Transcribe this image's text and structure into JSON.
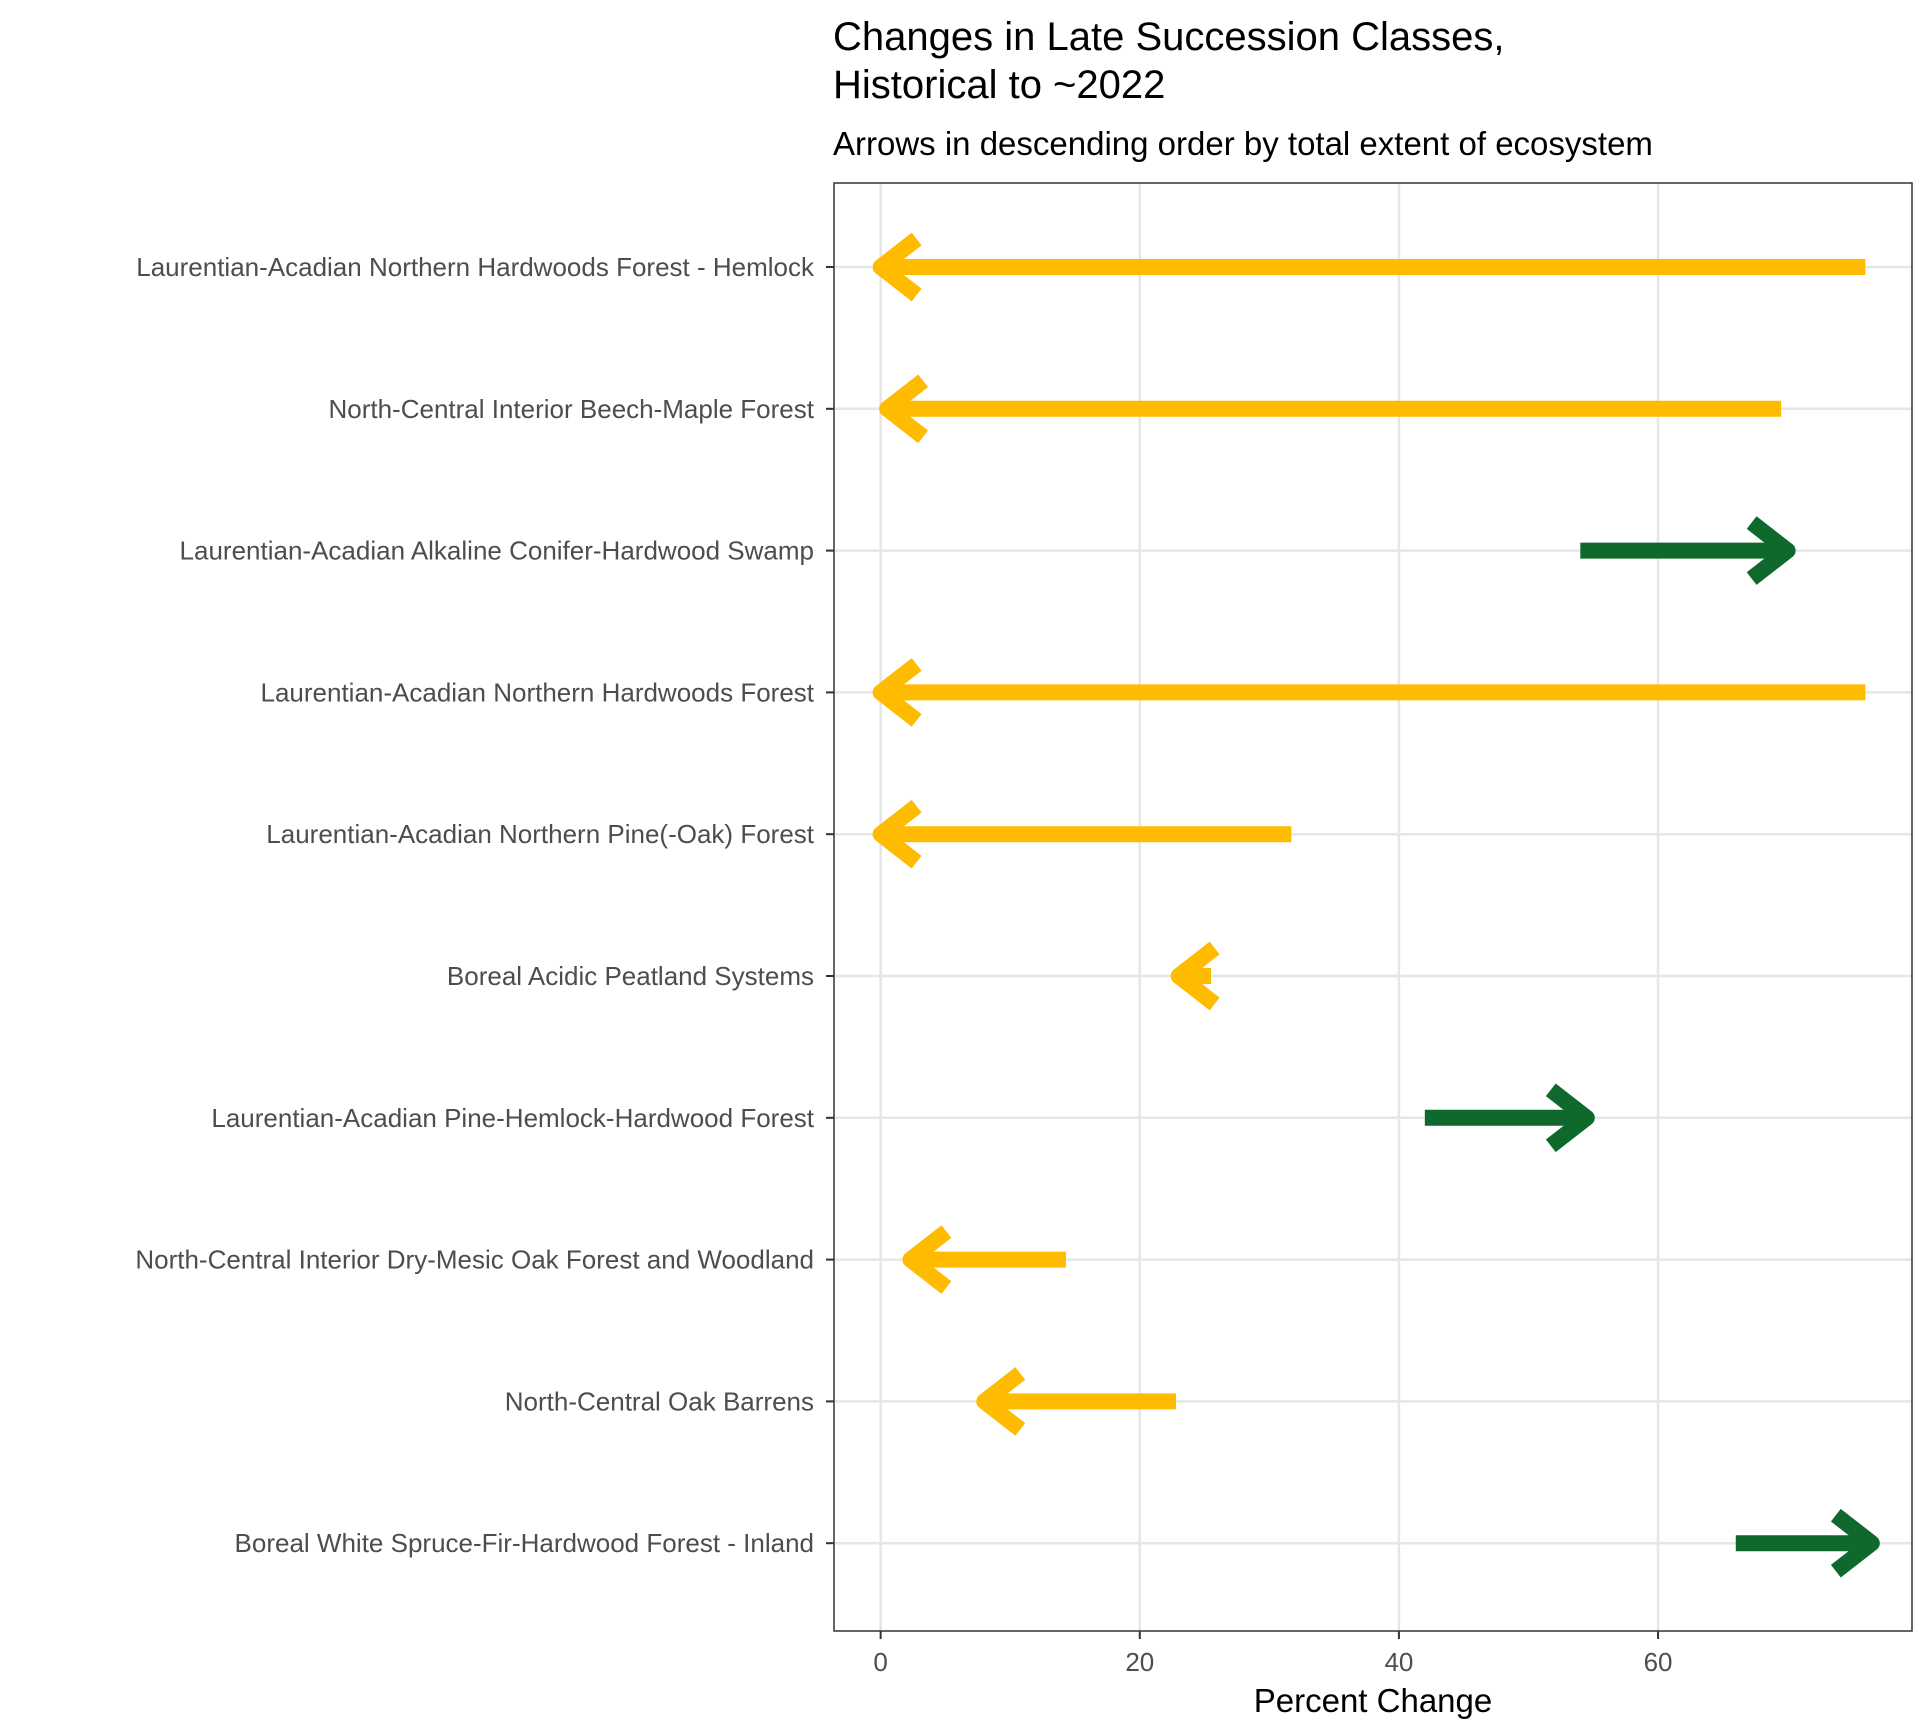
{
  "chart_data": {
    "type": "arrow",
    "title_lines": [
      "Changes in Late Succession Classes,",
      "Historical to ~2022"
    ],
    "subtitle": "Arrows in descending order by total extent of ecosystem",
    "xlabel": "Percent Change",
    "ylabel": "",
    "xlim": [
      -3.6,
      79.6
    ],
    "xticks": [
      0,
      20,
      40,
      60
    ],
    "grid": true,
    "colors": {
      "decrease": "#FFBB00",
      "increase": "#10692C"
    },
    "categories": [
      "Laurentian-Acadian Northern Hardwoods Forest - Hemlock",
      "North-Central Interior Beech-Maple Forest",
      "Laurentian-Acadian Alkaline Conifer-Hardwood Swamp",
      "Laurentian-Acadian Northern Hardwoods Forest",
      "Laurentian-Acadian Northern Pine(-Oak) Forest",
      "Boreal Acidic Peatland Systems",
      "Laurentian-Acadian Pine-Hemlock-Hardwood Forest",
      "North-Central Interior Dry-Mesic Oak Forest and Woodland",
      "North-Central Oak Barrens",
      "Boreal White Spruce-Fir-Hardwood Forest - Inland"
    ],
    "series": [
      {
        "x_start": [
          76,
          69.5,
          54,
          76,
          31.7,
          25.5,
          42,
          14.3,
          22.8,
          66
        ],
        "x_end": [
          0,
          0.5,
          70,
          0,
          0,
          23,
          54.5,
          2.3,
          8,
          76.5
        ]
      }
    ]
  }
}
